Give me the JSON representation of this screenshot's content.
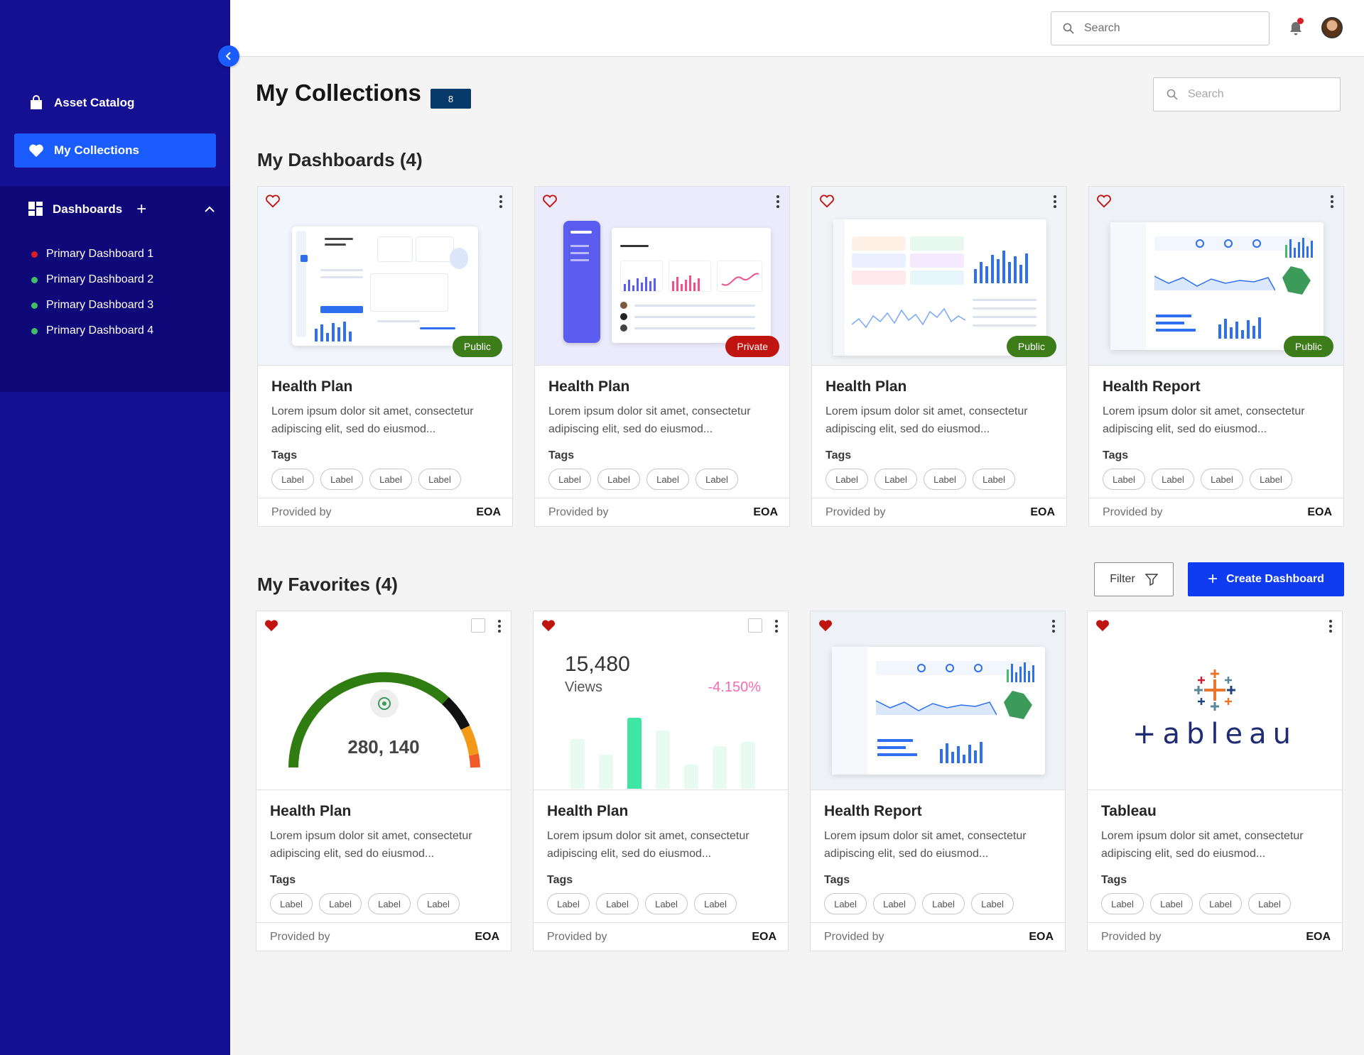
{
  "topbar": {
    "search_placeholder": "Search",
    "notification_icon": "bell-icon",
    "avatar": "user-avatar"
  },
  "sidebar": {
    "asset_catalog": "Asset Catalog",
    "my_collections": "My Collections",
    "dashboards_label": "Dashboards",
    "dashboards": [
      {
        "label": "Primary Dashboard 1",
        "status_color": "#da1e28"
      },
      {
        "label": "Primary Dashboard 2",
        "status_color": "#42be65"
      },
      {
        "label": "Primary Dashboard 3",
        "status_color": "#42be65"
      },
      {
        "label": "Primary Dashboard 4",
        "status_color": "#42be65"
      }
    ]
  },
  "page": {
    "title": "My Collections",
    "count": "8",
    "search_placeholder": "Search"
  },
  "dashboards_section": {
    "title": "My Dashboards (4)",
    "cards": [
      {
        "title": "Health Plan",
        "description": "Lorem ipsum dolor sit amet, consectetur adipiscing elit, sed do eiusmod...",
        "tags_label": "Tags",
        "tags": [
          "Label",
          "Label",
          "Label",
          "Label"
        ],
        "provided_by": "Provided by",
        "provider": "EOA",
        "visibility": "Public"
      },
      {
        "title": "Health Plan",
        "description": "Lorem ipsum dolor sit amet, consectetur adipiscing elit, sed do eiusmod...",
        "tags_label": "Tags",
        "tags": [
          "Label",
          "Label",
          "Label",
          "Label"
        ],
        "provided_by": "Provided by",
        "provider": "EOA",
        "visibility": "Private"
      },
      {
        "title": "Health Plan",
        "description": "Lorem ipsum dolor sit amet, consectetur adipiscing elit, sed do eiusmod...",
        "tags_label": "Tags",
        "tags": [
          "Label",
          "Label",
          "Label",
          "Label"
        ],
        "provided_by": "Provided by",
        "provider": "EOA",
        "visibility": "Public"
      },
      {
        "title": "Health Report",
        "description": "Lorem ipsum dolor sit amet, consectetur adipiscing elit, sed do eiusmod...",
        "tags_label": "Tags",
        "tags": [
          "Label",
          "Label",
          "Label",
          "Label"
        ],
        "provided_by": "Provided by",
        "provider": "EOA",
        "visibility": "Public"
      }
    ]
  },
  "favorites_section": {
    "title": "My Favorites (4)",
    "filter_label": "Filter",
    "create_label": "Create Dashboard",
    "cards": [
      {
        "title": "Health Plan",
        "description": "Lorem ipsum dolor sit amet, consectetur adipiscing elit, sed do eiusmod...",
        "tags_label": "Tags",
        "tags": [
          "Label",
          "Label",
          "Label",
          "Label"
        ],
        "provided_by": "Provided by",
        "provider": "EOA",
        "gauge_value": "280, 140"
      },
      {
        "title": "Health Plan",
        "description": "Lorem ipsum dolor sit amet, consectetur adipiscing elit, sed do eiusmod...",
        "tags_label": "Tags",
        "tags": [
          "Label",
          "Label",
          "Label",
          "Label"
        ],
        "provided_by": "Provided by",
        "provider": "EOA",
        "views_value": "15,480",
        "views_label": "Views",
        "views_change": "-4.150%"
      },
      {
        "title": "Health Report",
        "description": "Lorem ipsum dolor sit amet, consectetur adipiscing elit, sed do eiusmod...",
        "tags_label": "Tags",
        "tags": [
          "Label",
          "Label",
          "Label",
          "Label"
        ],
        "provided_by": "Provided by",
        "provider": "EOA"
      },
      {
        "title": "Tableau",
        "description": "Lorem ipsum dolor sit amet, consectetur adipiscing elit, sed do eiusmod...",
        "tags_label": "Tags",
        "tags": [
          "Label",
          "Label",
          "Label",
          "Label"
        ],
        "provided_by": "Provided by",
        "provider": "EOA",
        "logo_text": "+ableau"
      }
    ]
  },
  "colors": {
    "sidebar": "#150f91",
    "accent": "#1a5cff",
    "public": "#3c7d19",
    "private": "#c01410",
    "favorite_heart": "#c01410"
  }
}
